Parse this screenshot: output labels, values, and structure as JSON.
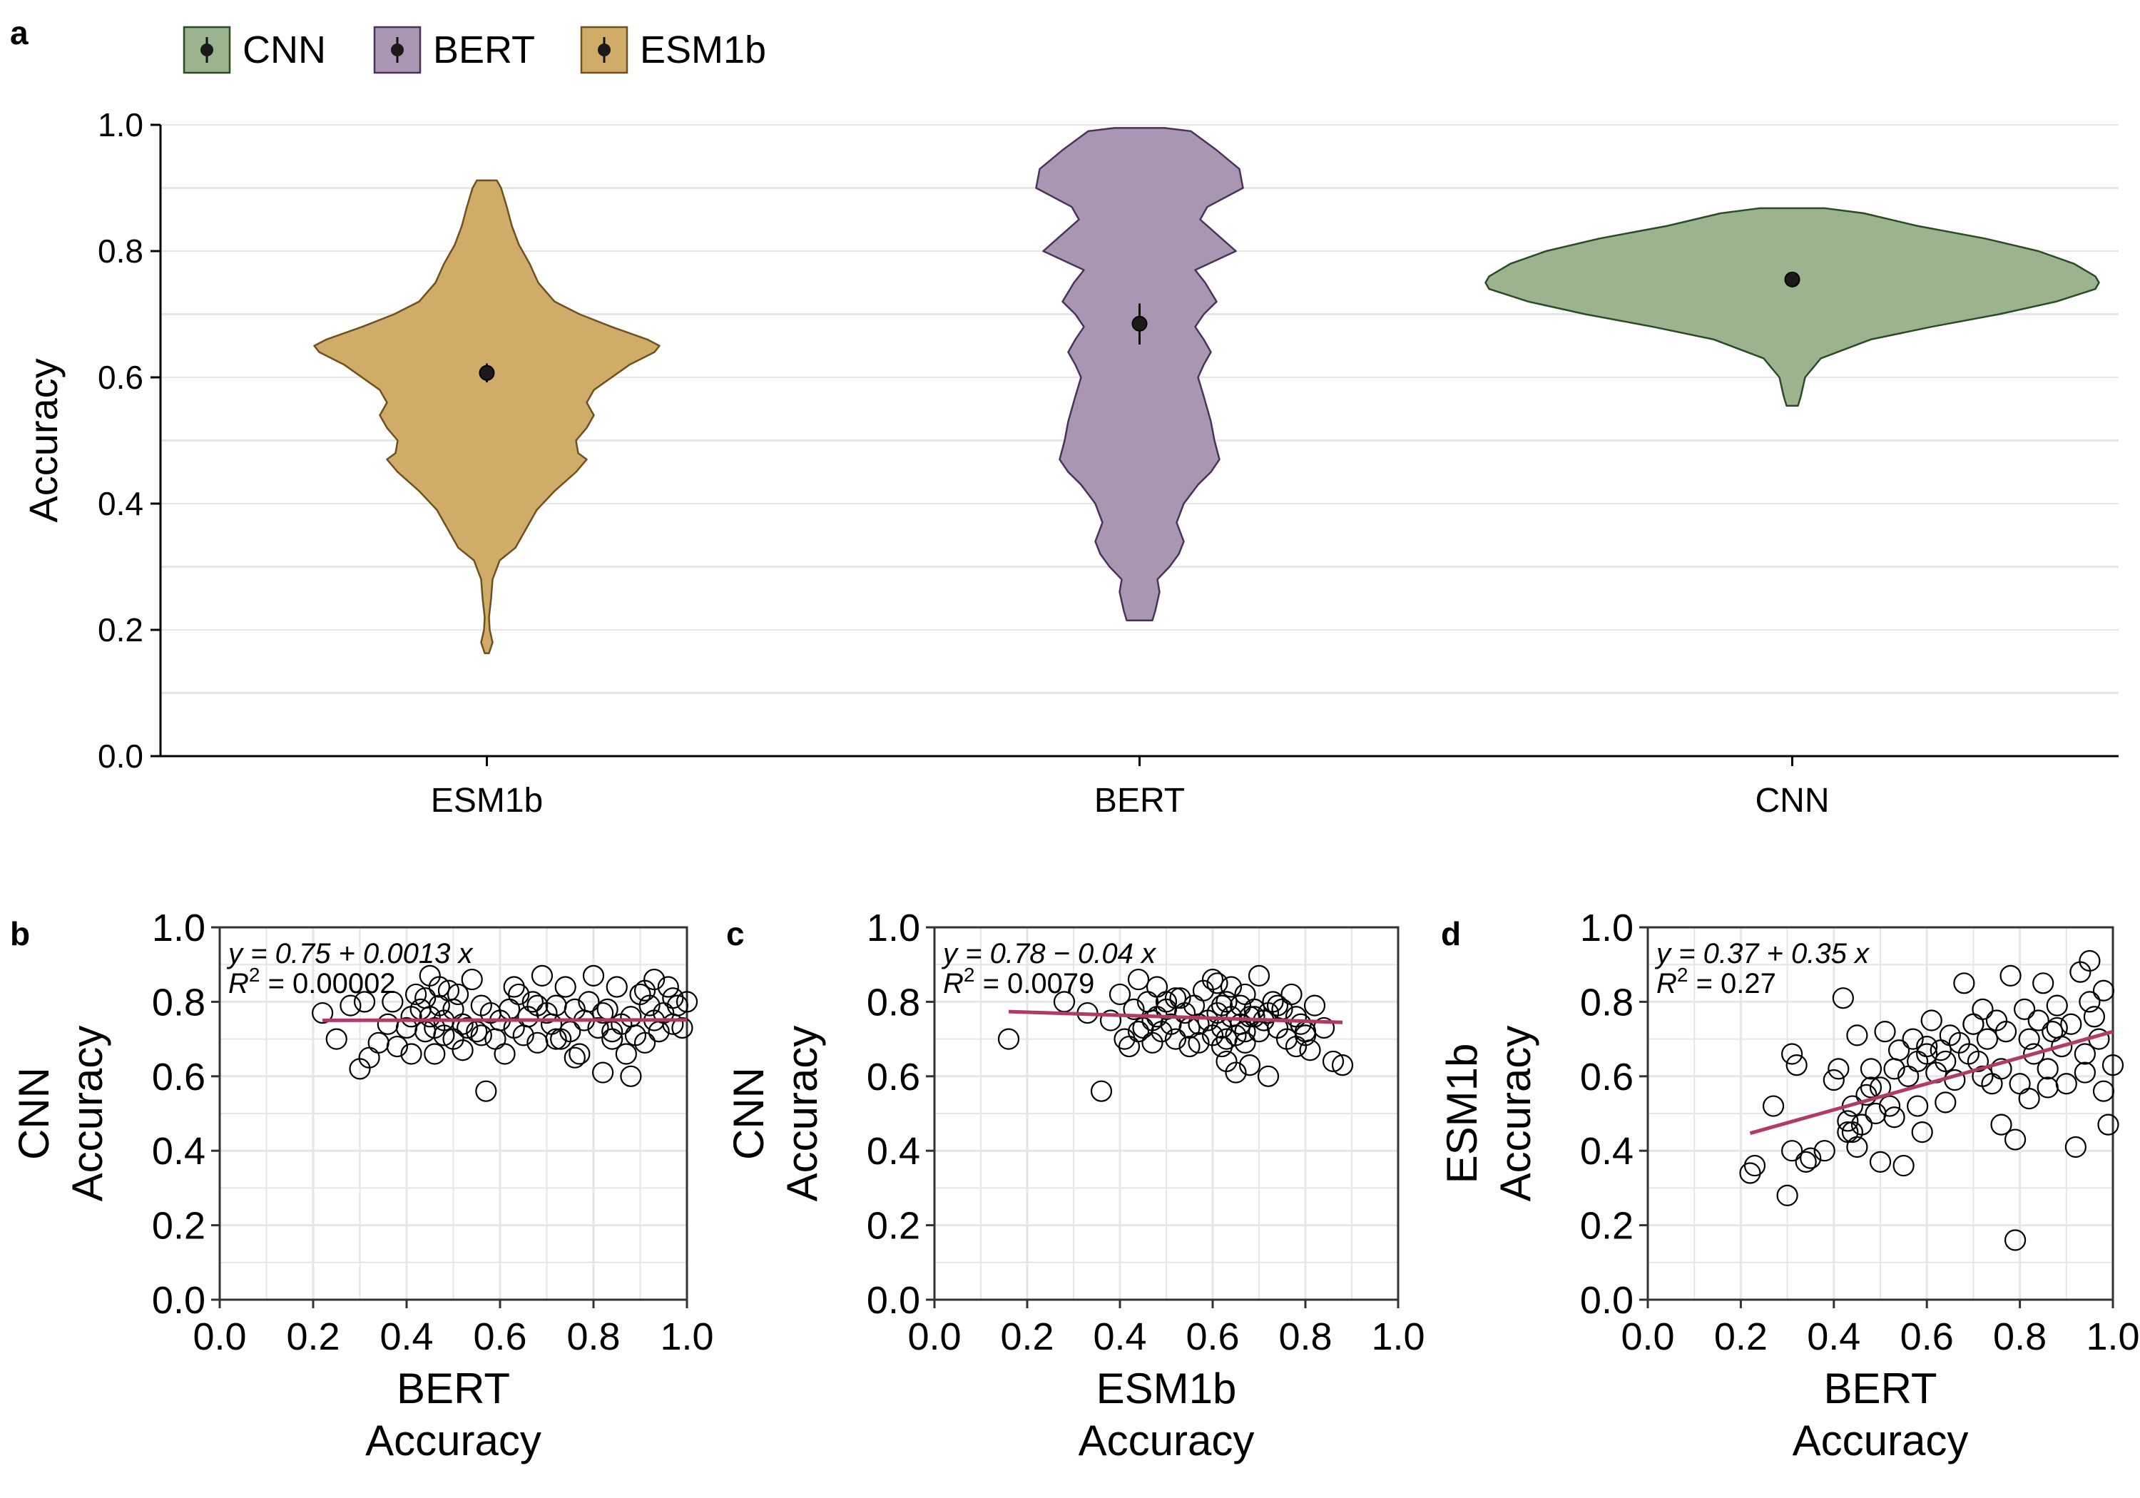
{
  "panels": {
    "a": {
      "label": "a"
    },
    "b": {
      "label": "b"
    },
    "c": {
      "label": "c"
    },
    "d": {
      "label": "d"
    }
  },
  "colors": {
    "CNN": "#9bb38f",
    "CNN_stroke": "#2d4a27",
    "BERT": "#a996b3",
    "BERT_stroke": "#4a3358",
    "ESM1b": "#d1ab68",
    "ESM1b_stroke": "#6e5120",
    "fit_line": "#b13b66",
    "grid": "#e6e6e6"
  },
  "chart_data": [
    {
      "id": "a",
      "type": "violin",
      "legend": {
        "placement": "top-left",
        "entries": [
          "CNN",
          "BERT",
          "ESM1b"
        ]
      },
      "xlabel": "",
      "ylabel": "Accuracy",
      "ylim": [
        0,
        1
      ],
      "yticks": [
        "0.0",
        "0.2",
        "0.4",
        "0.6",
        "0.8",
        "1.0"
      ],
      "categories": [
        "ESM1b",
        "BERT",
        "CNN"
      ],
      "grid": true,
      "series": [
        {
          "name": "ESM1b",
          "mean": 0.607,
          "ci": [
            0.592,
            0.622
          ],
          "min": 0.163,
          "max": 0.912
        },
        {
          "name": "BERT",
          "mean": 0.685,
          "ci": [
            0.652,
            0.717
          ],
          "min": 0.215,
          "max": 0.995
        },
        {
          "name": "CNN",
          "mean": 0.755,
          "ci": [
            0.748,
            0.762
          ],
          "min": 0.555,
          "max": 0.868
        }
      ]
    },
    {
      "id": "b",
      "type": "scatter",
      "xlabel": [
        "BERT",
        "Accuracy"
      ],
      "ylabel": [
        "CNN",
        "Accuracy"
      ],
      "xlim": [
        0,
        1
      ],
      "ylim": [
        0,
        1
      ],
      "xticks": [
        "0.0",
        "0.2",
        "0.4",
        "0.6",
        "0.8",
        "1.0"
      ],
      "yticks": [
        "0.0",
        "0.2",
        "0.4",
        "0.6",
        "0.8",
        "1.0"
      ],
      "grid": true,
      "annotation": {
        "eq": "y = 0.75 + 0.0013 x",
        "r2": "= 0.00002"
      },
      "fit": {
        "intercept": 0.75,
        "slope": 0.0013,
        "xrange": [
          0.22,
          1.0
        ]
      },
      "x": [
        0.22,
        0.25,
        0.28,
        0.3,
        0.31,
        0.32,
        0.34,
        0.36,
        0.37,
        0.38,
        0.4,
        0.41,
        0.42,
        0.43,
        0.44,
        0.44,
        0.45,
        0.45,
        0.46,
        0.47,
        0.47,
        0.48,
        0.48,
        0.49,
        0.5,
        0.5,
        0.51,
        0.52,
        0.53,
        0.54,
        0.55,
        0.56,
        0.57,
        0.58,
        0.59,
        0.6,
        0.61,
        0.62,
        0.63,
        0.64,
        0.65,
        0.66,
        0.67,
        0.68,
        0.69,
        0.7,
        0.71,
        0.72,
        0.73,
        0.74,
        0.75,
        0.76,
        0.77,
        0.78,
        0.79,
        0.8,
        0.81,
        0.82,
        0.83,
        0.84,
        0.85,
        0.86,
        0.87,
        0.88,
        0.89,
        0.9,
        0.91,
        0.92,
        0.93,
        0.94,
        0.95,
        0.96,
        0.97,
        0.98,
        0.99,
        1.0,
        0.46,
        0.52,
        0.63,
        0.72,
        0.82,
        0.88,
        0.93,
        0.97,
        0.41,
        0.56,
        0.68,
        0.76,
        0.84,
        0.91
      ],
      "y": [
        0.77,
        0.7,
        0.79,
        0.62,
        0.8,
        0.65,
        0.69,
        0.74,
        0.8,
        0.68,
        0.73,
        0.66,
        0.82,
        0.78,
        0.81,
        0.72,
        0.87,
        0.76,
        0.66,
        0.84,
        0.79,
        0.75,
        0.71,
        0.83,
        0.78,
        0.7,
        0.82,
        0.74,
        0.73,
        0.86,
        0.72,
        0.79,
        0.56,
        0.77,
        0.7,
        0.75,
        0.66,
        0.78,
        0.73,
        0.82,
        0.71,
        0.76,
        0.8,
        0.69,
        0.87,
        0.77,
        0.74,
        0.79,
        0.7,
        0.84,
        0.72,
        0.78,
        0.66,
        0.75,
        0.8,
        0.87,
        0.73,
        0.61,
        0.78,
        0.7,
        0.84,
        0.74,
        0.66,
        0.76,
        0.71,
        0.82,
        0.69,
        0.79,
        0.86,
        0.72,
        0.77,
        0.84,
        0.74,
        0.79,
        0.73,
        0.8,
        0.73,
        0.67,
        0.84,
        0.7,
        0.77,
        0.6,
        0.75,
        0.81,
        0.76,
        0.71,
        0.79,
        0.65,
        0.72,
        0.83
      ]
    },
    {
      "id": "c",
      "type": "scatter",
      "xlabel": [
        "ESM1b",
        "Accuracy"
      ],
      "ylabel": [
        "CNN",
        "Accuracy"
      ],
      "xlim": [
        0,
        1
      ],
      "ylim": [
        0,
        1
      ],
      "xticks": [
        "0.0",
        "0.2",
        "0.4",
        "0.6",
        "0.8",
        "1.0"
      ],
      "yticks": [
        "0.0",
        "0.2",
        "0.4",
        "0.6",
        "0.8",
        "1.0"
      ],
      "grid": true,
      "annotation": {
        "eq": "y = 0.78 − 0.04 x",
        "r2": "= 0.0079"
      },
      "fit": {
        "intercept": 0.78,
        "slope": -0.04,
        "xrange": [
          0.16,
          0.88
        ]
      },
      "x": [
        0.16,
        0.28,
        0.33,
        0.36,
        0.38,
        0.4,
        0.41,
        0.42,
        0.43,
        0.44,
        0.45,
        0.46,
        0.47,
        0.48,
        0.48,
        0.49,
        0.5,
        0.51,
        0.52,
        0.53,
        0.54,
        0.55,
        0.56,
        0.57,
        0.58,
        0.59,
        0.6,
        0.6,
        0.61,
        0.61,
        0.62,
        0.62,
        0.63,
        0.63,
        0.64,
        0.64,
        0.65,
        0.65,
        0.66,
        0.66,
        0.67,
        0.67,
        0.68,
        0.68,
        0.69,
        0.7,
        0.7,
        0.71,
        0.72,
        0.73,
        0.74,
        0.75,
        0.76,
        0.77,
        0.78,
        0.79,
        0.8,
        0.81,
        0.82,
        0.84,
        0.86,
        0.88,
        0.44,
        0.52,
        0.57,
        0.63,
        0.69,
        0.74,
        0.8,
        0.47,
        0.55,
        0.62,
        0.67,
        0.72,
        0.78,
        0.5
      ],
      "y": [
        0.7,
        0.8,
        0.77,
        0.56,
        0.75,
        0.82,
        0.7,
        0.68,
        0.78,
        0.86,
        0.73,
        0.8,
        0.69,
        0.76,
        0.84,
        0.72,
        0.78,
        0.74,
        0.7,
        0.81,
        0.77,
        0.73,
        0.79,
        0.69,
        0.83,
        0.75,
        0.86,
        0.71,
        0.77,
        0.85,
        0.73,
        0.68,
        0.8,
        0.64,
        0.76,
        0.84,
        0.71,
        0.61,
        0.79,
        0.74,
        0.69,
        0.82,
        0.76,
        0.63,
        0.78,
        0.87,
        0.72,
        0.75,
        0.6,
        0.8,
        0.73,
        0.78,
        0.7,
        0.82,
        0.76,
        0.74,
        0.71,
        0.67,
        0.79,
        0.73,
        0.64,
        0.63,
        0.72,
        0.81,
        0.74,
        0.7,
        0.76,
        0.79,
        0.72,
        0.75,
        0.68,
        0.79,
        0.72,
        0.77,
        0.68,
        0.8
      ]
    },
    {
      "id": "d",
      "type": "scatter",
      "xlabel": [
        "BERT",
        "Accuracy"
      ],
      "ylabel": [
        "ESM1b",
        "Accuracy"
      ],
      "xlim": [
        0,
        1
      ],
      "ylim": [
        0,
        1
      ],
      "xticks": [
        "0.0",
        "0.2",
        "0.4",
        "0.6",
        "0.8",
        "1.0"
      ],
      "yticks": [
        "0.0",
        "0.2",
        "0.4",
        "0.6",
        "0.8",
        "1.0"
      ],
      "grid": true,
      "annotation": {
        "eq": "y = 0.37 + 0.35 x",
        "r2": "= 0.27"
      },
      "fit": {
        "intercept": 0.37,
        "slope": 0.35,
        "xrange": [
          0.22,
          1.0
        ]
      },
      "x": [
        0.22,
        0.23,
        0.27,
        0.3,
        0.31,
        0.31,
        0.32,
        0.34,
        0.35,
        0.38,
        0.4,
        0.41,
        0.42,
        0.43,
        0.44,
        0.44,
        0.45,
        0.46,
        0.47,
        0.48,
        0.49,
        0.5,
        0.5,
        0.51,
        0.52,
        0.53,
        0.54,
        0.55,
        0.56,
        0.57,
        0.58,
        0.59,
        0.6,
        0.61,
        0.62,
        0.63,
        0.64,
        0.65,
        0.66,
        0.67,
        0.68,
        0.69,
        0.7,
        0.71,
        0.72,
        0.73,
        0.74,
        0.75,
        0.76,
        0.77,
        0.78,
        0.79,
        0.79,
        0.8,
        0.81,
        0.82,
        0.83,
        0.84,
        0.85,
        0.86,
        0.87,
        0.88,
        0.89,
        0.9,
        0.91,
        0.92,
        0.93,
        0.94,
        0.95,
        0.96,
        0.97,
        0.98,
        0.99,
        1.0,
        0.43,
        0.48,
        0.53,
        0.58,
        0.64,
        0.7,
        0.76,
        0.82,
        0.88,
        0.94,
        0.98,
        0.45,
        0.6,
        0.72,
        0.86,
        0.95
      ],
      "y": [
        0.34,
        0.36,
        0.52,
        0.28,
        0.66,
        0.4,
        0.63,
        0.37,
        0.38,
        0.4,
        0.59,
        0.62,
        0.81,
        0.48,
        0.52,
        0.45,
        0.71,
        0.47,
        0.55,
        0.62,
        0.5,
        0.37,
        0.57,
        0.72,
        0.52,
        0.62,
        0.67,
        0.36,
        0.6,
        0.7,
        0.52,
        0.45,
        0.66,
        0.75,
        0.61,
        0.67,
        0.64,
        0.71,
        0.59,
        0.69,
        0.85,
        0.66,
        0.74,
        0.64,
        0.78,
        0.7,
        0.58,
        0.75,
        0.47,
        0.72,
        0.87,
        0.16,
        0.43,
        0.58,
        0.78,
        0.7,
        0.66,
        0.75,
        0.85,
        0.62,
        0.72,
        0.79,
        0.68,
        0.58,
        0.74,
        0.41,
        0.88,
        0.66,
        0.91,
        0.76,
        0.7,
        0.56,
        0.47,
        0.63,
        0.45,
        0.57,
        0.49,
        0.64,
        0.53,
        0.74,
        0.62,
        0.54,
        0.73,
        0.61,
        0.83,
        0.41,
        0.68,
        0.6,
        0.57,
        0.8
      ]
    }
  ]
}
